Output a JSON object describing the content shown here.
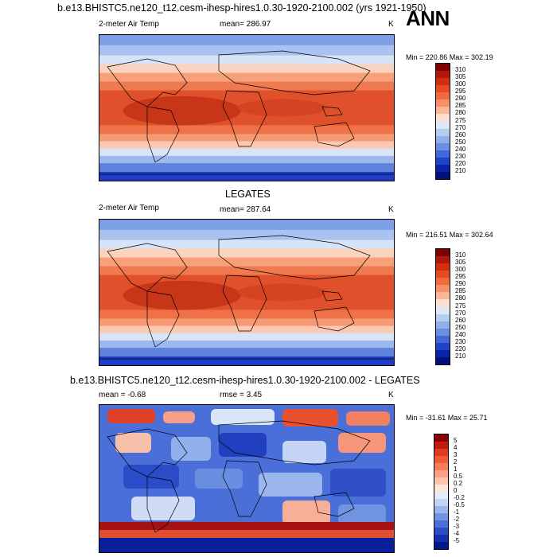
{
  "header": {
    "title": "b.e13.BHISTC5.ne120_t12.cesm-ihesp-hires1.0.30-1920-2100.002 (yrs 1921-1950)",
    "season": "ANN"
  },
  "panels": [
    {
      "id": "model",
      "variable": "2-meter Air Temp",
      "stat_text": "mean= 286.97",
      "units": "K",
      "minmax": "Min = 220.86 Max = 302.19",
      "colorbar": {
        "labels": [
          "310",
          "305",
          "300",
          "295",
          "290",
          "285",
          "280",
          "275",
          "270",
          "260",
          "250",
          "240",
          "230",
          "220",
          "210"
        ],
        "colors": [
          "#7f0000",
          "#b0180e",
          "#d42d12",
          "#e84b22",
          "#f06a3c",
          "#f7906a",
          "#fab898",
          "#fde0cf",
          "#dde8f8",
          "#b6cdf0",
          "#8fb0e8",
          "#6a8fe0",
          "#4068d8",
          "#1f44c8",
          "#0a22a8",
          "#00127a"
        ]
      }
    },
    {
      "id": "obs",
      "title": "LEGATES",
      "variable": "2-meter Air Temp",
      "stat_text": "mean= 287.64",
      "units": "K",
      "minmax": "Min = 216.51 Max = 302.64",
      "colorbar": {
        "labels": [
          "310",
          "305",
          "300",
          "295",
          "290",
          "285",
          "280",
          "275",
          "270",
          "260",
          "250",
          "240",
          "230",
          "220",
          "210"
        ],
        "colors": [
          "#7f0000",
          "#b0180e",
          "#d42d12",
          "#e84b22",
          "#f06a3c",
          "#f7906a",
          "#fab898",
          "#fde0cf",
          "#dde8f8",
          "#b6cdf0",
          "#8fb0e8",
          "#6a8fe0",
          "#4068d8",
          "#1f44c8",
          "#0a22a8",
          "#00127a"
        ]
      }
    },
    {
      "id": "diff",
      "title": "b.e13.BHISTC5.ne120_t12.cesm-ihesp-hires1.0.30-1920-2100.002 - LEGATES",
      "stat_text": "mean =  -0.68",
      "stat_text2": "rmse =   3.45",
      "units": "K",
      "minmax": "Min = -31.61 Max =  25.71",
      "colorbar": {
        "labels": [
          "5",
          "4",
          "3",
          "2",
          "1",
          "0.5",
          "0.2",
          "0",
          "-0.2",
          "-0.5",
          "-1",
          "-2",
          "-3",
          "-4",
          "-5"
        ],
        "colors": [
          "#8b0000",
          "#c01d10",
          "#e03a22",
          "#f05a3a",
          "#f77c5a",
          "#fba080",
          "#fdc4ac",
          "#fde6d8",
          "#e4ecfa",
          "#c3d4f4",
          "#9ab6ec",
          "#7094e2",
          "#4a70d8",
          "#2a4cc8",
          "#1230b0",
          "#001a8a"
        ]
      }
    }
  ],
  "palette": {
    "ocean_polar": "#1e3cc8",
    "ocean_cold": "#6f95e3",
    "ocean_cool": "#c8d8f4",
    "ocean_mid": "#f9b89a",
    "ocean_warm": "#ee6a3f",
    "ocean_hot": "#d63a1c",
    "land_outline": "#000000"
  }
}
